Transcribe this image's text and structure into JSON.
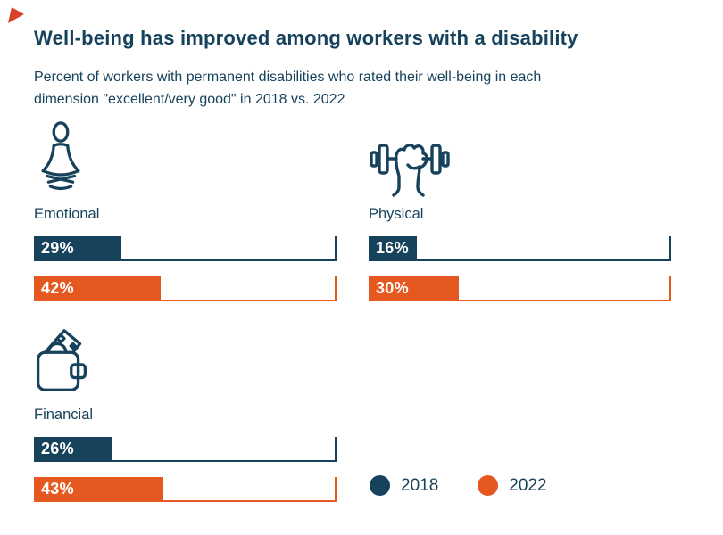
{
  "colors": {
    "navy": "#17425C",
    "orange": "#E5581F",
    "corner_red": "#D94228",
    "bar_value_text": "#FFFFFF",
    "background": "#FFFFFF"
  },
  "header": {
    "title": "Well-being has improved among workers with a disability",
    "subtitle_line1": "Percent of workers with permanent disabilities who rated their well-being in each",
    "subtitle_line2": "dimension \"excellent/very good\" in 2018 vs. 2022"
  },
  "chart_data": {
    "type": "bar",
    "title": "Well-being has improved among workers with a disability",
    "subtitle": "Percent of workers with permanent disabilities who rated their well-being in each dimension \"excellent/very good\" in 2018 vs. 2022",
    "categories": [
      "Emotional",
      "Physical",
      "Financial"
    ],
    "series": [
      {
        "name": "2018",
        "color": "#17425C",
        "values": [
          29,
          16,
          26
        ]
      },
      {
        "name": "2022",
        "color": "#E5581F",
        "values": [
          42,
          30,
          43
        ]
      }
    ],
    "value_suffix": "%",
    "xlim": [
      0,
      100
    ],
    "orientation": "horizontal",
    "grid": false,
    "legend_position": "bottom-right",
    "category_icons": [
      "meditation-icon",
      "dumbbell-fist-icon",
      "wallet-money-icon"
    ]
  },
  "panels": [
    {
      "label": "Emotional",
      "icon": "meditation-icon",
      "v2018": "29%",
      "p2018": 29,
      "v2022": "42%",
      "p2022": 42
    },
    {
      "label": "Physical",
      "icon": "dumbbell-fist-icon",
      "v2018": "16%",
      "p2018": 16,
      "v2022": "30%",
      "p2022": 30
    },
    {
      "label": "Financial",
      "icon": "wallet-money-icon",
      "v2018": "26%",
      "p2018": 26,
      "v2022": "43%",
      "p2022": 43
    }
  ],
  "legend": [
    {
      "label": "2018",
      "color": "#17425C"
    },
    {
      "label": "2022",
      "color": "#E5581F"
    }
  ]
}
